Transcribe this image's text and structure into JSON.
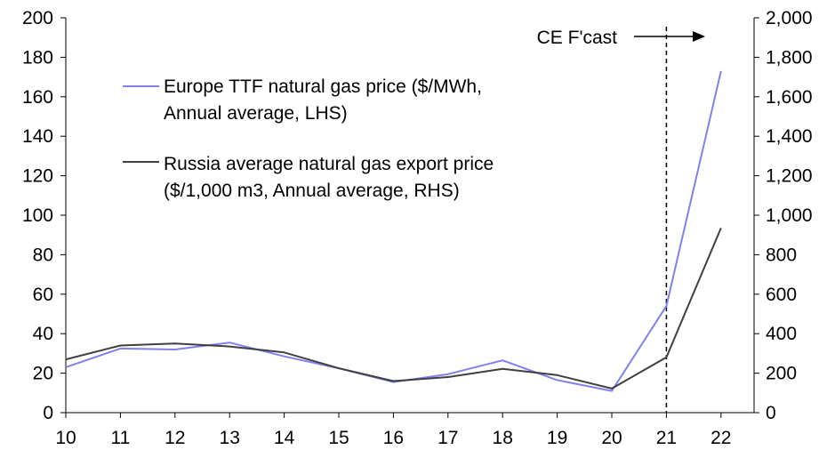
{
  "chart_data": {
    "type": "line",
    "title": "",
    "xlabel": "",
    "ylabel": "",
    "x": [
      "10",
      "11",
      "12",
      "13",
      "14",
      "15",
      "16",
      "17",
      "18",
      "19",
      "20",
      "21",
      "22"
    ],
    "ylim_left": [
      0,
      200
    ],
    "yticks_left": [
      "0",
      "20",
      "40",
      "60",
      "80",
      "100",
      "120",
      "140",
      "160",
      "180",
      "200"
    ],
    "ylim_right": [
      0,
      2000
    ],
    "yticks_right": [
      "0",
      "200",
      "400",
      "600",
      "800",
      "1,000",
      "1,200",
      "1,400",
      "1,600",
      "1,800",
      "2,000"
    ],
    "grid": false,
    "legend_position": "top-left, inside plot",
    "series": [
      {
        "name_lines": [
          "Europe TTF natural gas price ($/MWh,",
          "Annual average, LHS)"
        ],
        "axis": "left",
        "color": "#8080f0",
        "values": [
          23,
          32.5,
          32,
          35.5,
          28.5,
          22.5,
          15.5,
          19.5,
          26.5,
          16.5,
          11,
          54,
          173
        ]
      },
      {
        "name_lines": [
          "Russia average natural gas export price",
          "($/1,000 m3, Annual average, RHS)"
        ],
        "axis": "right",
        "color": "#404040",
        "values": [
          270,
          340,
          350,
          335,
          305,
          225,
          160,
          180,
          222,
          190,
          122,
          280,
          935
        ]
      }
    ],
    "forecast": {
      "label": "CE F'cast",
      "start_x": "21"
    }
  }
}
